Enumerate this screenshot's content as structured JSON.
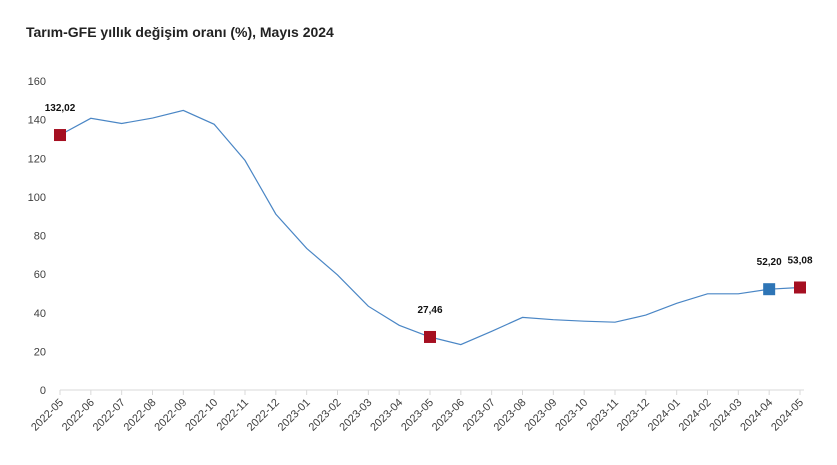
{
  "chart_data": {
    "type": "line",
    "title": "Tarım-GFE yıllık değişim oranı (%), Mayıs 2024",
    "xlabel": "",
    "ylabel": "",
    "ylim": [
      0,
      160
    ],
    "yticks": [
      0,
      20,
      40,
      60,
      80,
      100,
      120,
      140,
      160
    ],
    "grid": false,
    "legend": "none",
    "line_color": "#4a86c5",
    "categories": [
      "2022-05",
      "2022-06",
      "2022-07",
      "2022-08",
      "2022-09",
      "2022-10",
      "2022-11",
      "2022-12",
      "2023-01",
      "2023-02",
      "2023-03",
      "2023-04",
      "2023-05",
      "2023-06",
      "2023-07",
      "2023-08",
      "2023-09",
      "2023-10",
      "2023-11",
      "2023-12",
      "2024-01",
      "2024-02",
      "2024-03",
      "2024-04",
      "2024-05"
    ],
    "series": [
      {
        "values": [
          132.02,
          140.7,
          138.0,
          140.8,
          144.8,
          137.6,
          118.9,
          91.1,
          73.3,
          59.6,
          43.4,
          33.5,
          27.46,
          23.5,
          30.4,
          37.6,
          36.4,
          35.6,
          35.1,
          38.8,
          44.9,
          49.8,
          49.8,
          52.2,
          53.08
        ]
      }
    ],
    "markers": [
      {
        "index": 0,
        "label": "132,02",
        "color": "#a50f21"
      },
      {
        "index": 12,
        "label": "27,46",
        "color": "#a50f21"
      },
      {
        "index": 23,
        "label": "52,20",
        "color": "#2e75b6"
      },
      {
        "index": 24,
        "label": "53,08",
        "color": "#a50f21"
      }
    ]
  }
}
